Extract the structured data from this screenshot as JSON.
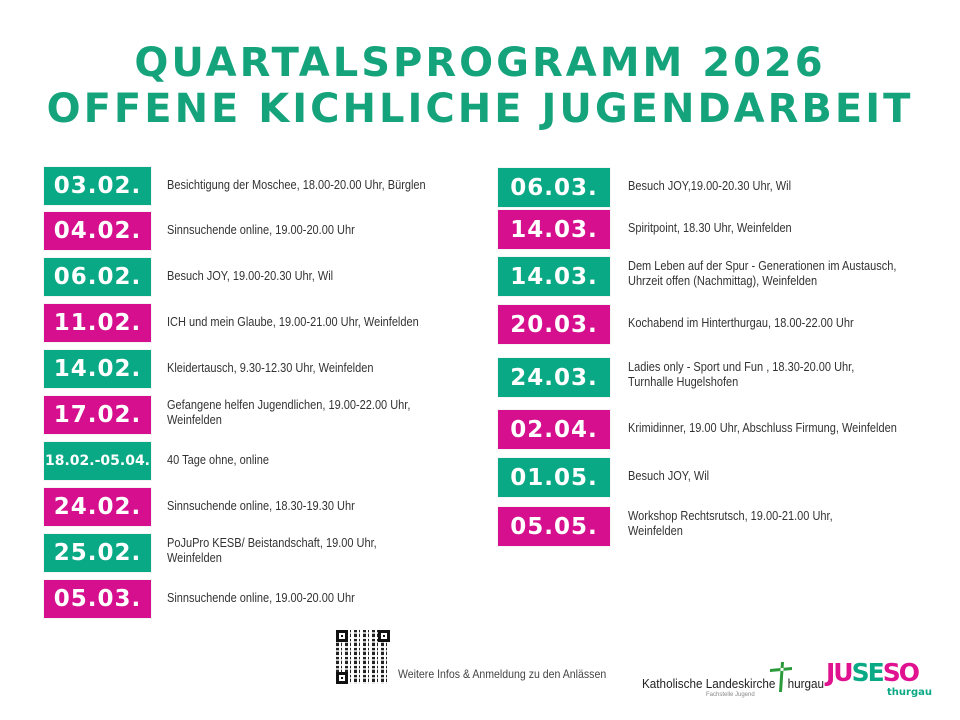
{
  "header": {
    "title_line1": "Quartalsprogramm 2026",
    "title_line2": "Offene Kichliche Jugendarbeit"
  },
  "colors": {
    "green": "#0aa985",
    "magenta": "#d50f8d",
    "title": "#15a37c"
  },
  "left_events": [
    {
      "date": "03.02.",
      "text": "Besichtigung der Moschee, 18.00-20.00 Uhr, Bürglen",
      "color": "green"
    },
    {
      "date": "04.02.",
      "text": "Sinnsuchende online, 19.00-20.00 Uhr",
      "color": "magenta"
    },
    {
      "date": "06.02.",
      "text": "Besuch JOY, 19.00-20.30 Uhr, Wil",
      "color": "green"
    },
    {
      "date": "11.02.",
      "text": "ICH und mein Glaube, 19.00-21.00 Uhr, Weinfelden",
      "color": "magenta"
    },
    {
      "date": "14.02.",
      "text": "Kleidertausch, 9.30-12.30 Uhr, Weinfelden",
      "color": "green"
    },
    {
      "date": "17.02.",
      "text": "Gefangene helfen Jugendlichen, 19.00-22.00 Uhr,",
      "text2": "Weinfelden",
      "color": "magenta"
    },
    {
      "date": "18.02.-05.04.",
      "text": "40 Tage ohne, online",
      "color": "green"
    },
    {
      "date": "24.02.",
      "text": "Sinnsuchende online, 18.30-19.30 Uhr",
      "color": "magenta"
    },
    {
      "date": "25.02.",
      "text": "PoJuPro KESB/ Beistandschaft, 19.00 Uhr,",
      "text2": "Weinfelden",
      "color": "green"
    },
    {
      "date": "05.03.",
      "text": "Sinnsuchende online, 19.00-20.00 Uhr",
      "color": "magenta"
    }
  ],
  "right_events": [
    {
      "date": "06.03.",
      "text": "Besuch JOY,19.00-20.30 Uhr, Wil",
      "color": "green"
    },
    {
      "date": "14.03.",
      "text": "Spiritpoint, 18.30 Uhr, Weinfelden",
      "color": "magenta"
    },
    {
      "date": "14.03.",
      "text": "Dem Leben auf der Spur - Generationen im Austausch,",
      "text2": "Uhrzeit offen (Nachmittag), Weinfelden",
      "color": "green"
    },
    {
      "date": "20.03.",
      "text": "Kochabend im Hinterthurgau, 18.00-22.00 Uhr",
      "color": "magenta"
    },
    {
      "date": "24.03.",
      "text": "Ladies only - Sport und Fun , 18.30-20.00 Uhr,",
      "text2": "Turnhalle Hugelshofen",
      "color": "green"
    },
    {
      "date": "02.04.",
      "text": "Krimidinner,  19.00 Uhr, Abschluss Firmung, Weinfelden",
      "color": "magenta"
    },
    {
      "date": "01.05.",
      "text": "Besuch JOY, Wil",
      "color": "green"
    },
    {
      "date": "05.05.",
      "text": "Workshop Rechtsrutsch, 19.00-21.00 Uhr,",
      "text2": "Weinfelden",
      "color": "magenta"
    }
  ],
  "footer": {
    "qr_info": "Weitere Infos & Anmeldung  zu den Anlässen",
    "logo_kath_a": "Katholische Landeskirche ",
    "logo_kath_b": "hurgau",
    "logo_kath_sub": "Fachstelle Jugend",
    "logo_juseso_ju": "JU",
    "logo_juseso_se": "SE",
    "logo_juseso_so": "SO",
    "logo_juseso_sub": "thurgau"
  }
}
